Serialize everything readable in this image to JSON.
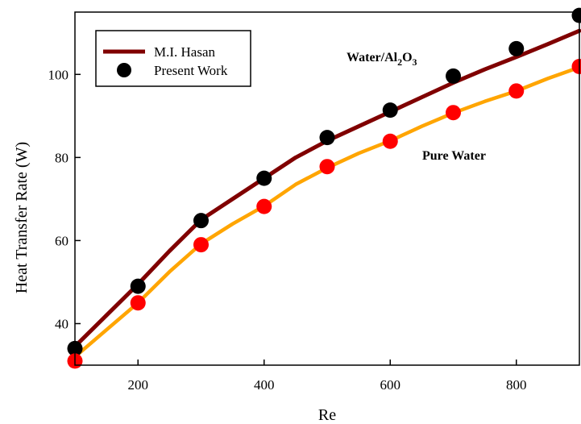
{
  "chart_data": {
    "type": "line",
    "xlabel": "Re",
    "ylabel": "Heat Transfer Rate (W)",
    "xlim": [
      100,
      900
    ],
    "ylim": [
      30,
      115
    ],
    "x_ticks": [
      200,
      400,
      600,
      800
    ],
    "y_ticks": [
      40,
      60,
      80,
      100
    ],
    "legend": {
      "placement": "top-left",
      "line_label": "M.I. Hasan",
      "marker_label": "Present Work"
    },
    "annotations": {
      "water_al2o3": {
        "prefix": "Water/Al",
        "sub1": "2",
        "mid": "O",
        "sub2": "3"
      },
      "pure_water": "Pure Water"
    },
    "series": [
      {
        "name": "M.I. Hasan",
        "role": "line",
        "color": "#800000",
        "x": [
          100,
          150,
          200,
          250,
          300,
          350,
          400,
          450,
          500,
          550,
          600,
          650,
          700,
          750,
          800,
          850,
          900
        ],
        "y": [
          34.5,
          42,
          49.5,
          57.5,
          65,
          70,
          75,
          80,
          84,
          87.5,
          91,
          94.5,
          98,
          101.2,
          104.2,
          107.3,
          110.5
        ]
      },
      {
        "name": "Present Work",
        "role": "markers",
        "color": "#000000",
        "x": [
          100,
          200,
          300,
          400,
          500,
          600,
          700,
          800,
          900
        ],
        "y": [
          34,
          49,
          64.8,
          75,
          84.8,
          91.4,
          99.6,
          106.2,
          114.2
        ]
      },
      {
        "role": "line",
        "color": "#FFA500",
        "x": [
          100,
          150,
          200,
          250,
          300,
          350,
          400,
          450,
          500,
          550,
          600,
          650,
          700,
          750,
          800,
          850,
          900
        ],
        "y": [
          32,
          38.5,
          45,
          52.5,
          59.2,
          64,
          68.3,
          73.5,
          77.5,
          81,
          84,
          87.5,
          90.7,
          93.5,
          96,
          99,
          101.7
        ]
      },
      {
        "role": "markers",
        "color": "#FF0000",
        "x": [
          100,
          200,
          300,
          400,
          500,
          600,
          700,
          800,
          900
        ],
        "y": [
          31,
          45,
          59,
          68.2,
          77.8,
          83.9,
          90.8,
          96,
          101.9
        ]
      }
    ]
  }
}
